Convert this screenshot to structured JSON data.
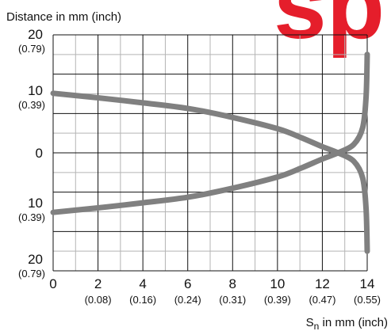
{
  "chart_data": {
    "type": "line",
    "ylabel": "Distance in mm (inch)",
    "xlabel": {
      "main": "S",
      "sub": "n",
      "rest": " in mm (inch)"
    },
    "watermark": "sp",
    "colors": {
      "curve": "#808080",
      "grid_major": "#111111",
      "grid_minor": "#b4b4b4",
      "watermark": "#e51e2b"
    },
    "xlim": [
      0,
      14
    ],
    "ylim": [
      -21,
      21
    ],
    "grid": true,
    "x_ticks": [
      {
        "value": 0,
        "label": "0",
        "sub": ""
      },
      {
        "value": 2,
        "label": "2",
        "sub": "(0.08)"
      },
      {
        "value": 4,
        "label": "4",
        "sub": "(0.16)"
      },
      {
        "value": 6,
        "label": "6",
        "sub": "(0.24)"
      },
      {
        "value": 8,
        "label": "8",
        "sub": "(0.31)"
      },
      {
        "value": 10,
        "label": "10",
        "sub": "(0.39)"
      },
      {
        "value": 12,
        "label": "12",
        "sub": "(0.47)"
      },
      {
        "value": 14,
        "label": "14",
        "sub": "(0.55)"
      }
    ],
    "y_ticks": [
      {
        "value": 20,
        "label": "20",
        "sub": "(0.79)"
      },
      {
        "value": 10,
        "label": "10",
        "sub": "(0.39)"
      },
      {
        "value": 0,
        "label": "0",
        "sub": ""
      },
      {
        "value": -10,
        "label": "10",
        "sub": "(0.39)"
      },
      {
        "value": -20,
        "label": "20",
        "sub": "(0.79)"
      }
    ],
    "series": [
      {
        "x": [
          0,
          2,
          4,
          6,
          8,
          10,
          11,
          12,
          12.7,
          13.4,
          13.8,
          13.95,
          14
        ],
        "y": [
          10.6,
          9.8,
          8.9,
          7.9,
          6.3,
          4.3,
          2.8,
          1.1,
          0,
          -1.5,
          -4.5,
          -10,
          -17.5
        ]
      },
      {
        "x": [
          0,
          2,
          4,
          6,
          8,
          10,
          11,
          12,
          12.7,
          13.4,
          13.8,
          13.95,
          14
        ],
        "y": [
          -10.6,
          -9.8,
          -8.9,
          -7.9,
          -6.3,
          -4.3,
          -2.8,
          -1.1,
          0,
          1.5,
          4.5,
          10,
          17.5
        ]
      }
    ]
  }
}
